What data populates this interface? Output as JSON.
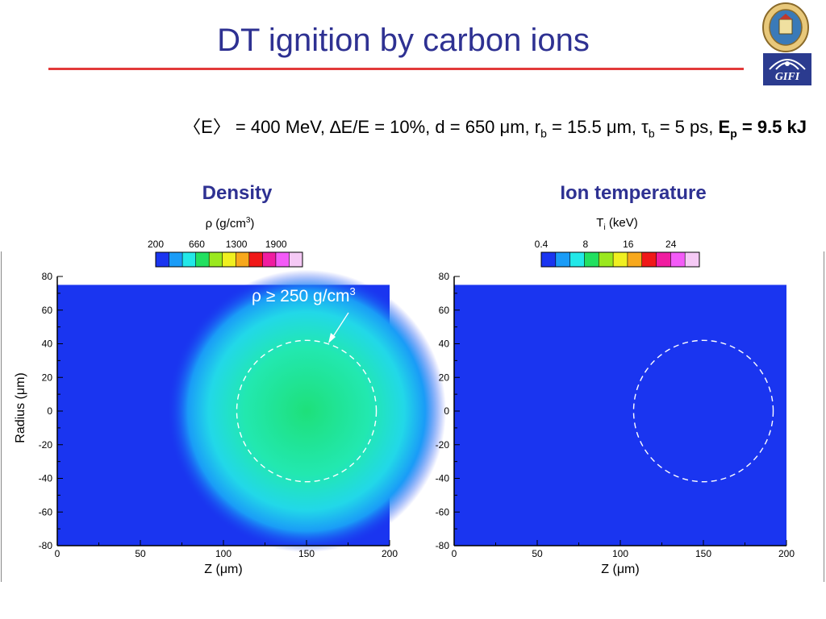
{
  "slide": {
    "title": "DT ignition by carbon ions",
    "logo_text": "GIFI"
  },
  "params": {
    "energy_label": "〈E〉 = 400 MeV, ",
    "spread_label": "∆E/E = 10%, d = 650 μm, r",
    "rb_sub": "b",
    "rb_value": " = 15.5 μm, τ",
    "tb_sub": "b",
    "tb_value": " = 5 ps, ",
    "ep_label": "E",
    "ep_sub": "p",
    "ep_value": " = 9.5 kJ"
  },
  "annotation": {
    "text": "ρ ≥ 250 g/cm",
    "sup": "3"
  },
  "colors": {
    "title_blue": "#2e3192",
    "rule_red": "#e23a3a",
    "field_blue": "#1a35f0",
    "core_green": "#1ee07a",
    "circle": "#ffffff"
  },
  "chart_data": [
    {
      "type": "heatmap",
      "title": "Density",
      "colorbar_label": "ρ (g/cm",
      "colorbar_label_sup": "3",
      "colorbar_label_end": ")",
      "colorbar_ticks": [
        "200",
        "660",
        "1300",
        "1900"
      ],
      "colorbar_colors": [
        "#1a35f0",
        "#1a9cf7",
        "#22e8e8",
        "#22e060",
        "#9ae81e",
        "#f0f020",
        "#f7a81c",
        "#f01818",
        "#f01ca0",
        "#f35bf7",
        "#f5c9f5"
      ],
      "xlabel": "Z (μm)",
      "ylabel": "Radius (μm)",
      "xlim": [
        0,
        200
      ],
      "ylim": [
        -80,
        80
      ],
      "x_ticks": [
        "0",
        "50",
        "100",
        "150",
        "200"
      ],
      "y_ticks": [
        "80",
        "60",
        "40",
        "20",
        "0",
        "-20",
        "-40",
        "-60",
        "-80"
      ],
      "data_extent": {
        "z": [
          0,
          200
        ],
        "r": [
          -80,
          75
        ]
      },
      "background_value": 200,
      "core": {
        "z_center": 150,
        "r_center": 0,
        "radius": 40,
        "peak_value": 660
      },
      "contour": {
        "z_center": 150,
        "r_center": 0,
        "radius": 42,
        "label": "ρ ≥ 250 g/cm³"
      }
    },
    {
      "type": "heatmap",
      "title": "Ion temperature",
      "colorbar_label": "T",
      "colorbar_label_sub": "i",
      "colorbar_label_end": " (keV)",
      "colorbar_ticks": [
        "0.4",
        "8",
        "16",
        "24"
      ],
      "colorbar_colors": [
        "#1a35f0",
        "#1a9cf7",
        "#22e8e8",
        "#22e060",
        "#9ae81e",
        "#f0f020",
        "#f7a81c",
        "#f01818",
        "#f01ca0",
        "#f35bf7",
        "#f5c9f5"
      ],
      "xlabel": "Z (μm)",
      "ylabel": "",
      "xlim": [
        0,
        200
      ],
      "ylim": [
        -80,
        80
      ],
      "x_ticks": [
        "0",
        "50",
        "100",
        "150",
        "200"
      ],
      "y_ticks": [
        "80",
        "60",
        "40",
        "20",
        "0",
        "-20",
        "-40",
        "-60",
        "-80"
      ],
      "data_extent": {
        "z": [
          0,
          200
        ],
        "r": [
          -80,
          75
        ]
      },
      "background_value": 0.4,
      "contour": {
        "z_center": 150,
        "r_center": 0,
        "radius": 42
      }
    }
  ]
}
